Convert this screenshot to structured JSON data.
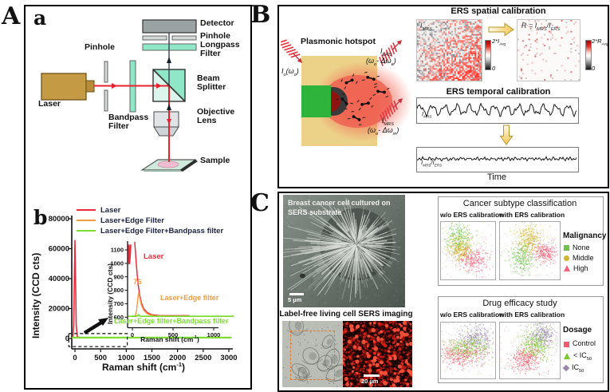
{
  "colors": {
    "laser_red": "#ee2b3d",
    "edge_orange": "#f59b42",
    "bandpass_green": "#7ddd35",
    "legend_text": "#1d2340",
    "calibration_arrow_fill": "#f2c755",
    "hotspot_substrate": "#ecd189",
    "hotspot_waveguide_green": "#2eb43a",
    "sers_map_red": "#ff3020"
  },
  "panelA": {
    "label": "A",
    "diagram": {
      "label": "a",
      "components": {
        "detector": "Detector",
        "pinhole_top": "Pinhole",
        "longpass": "Longpass\nFilter",
        "beamsplitter": "Beam\nSplitter",
        "objective": "Objective\nLens",
        "sample": "Sample",
        "pinhole_left": "Pinhole",
        "laser": "Laser",
        "bandpass": "Bandpass\nFilter"
      }
    },
    "chart": {
      "label": "b"
    }
  },
  "panelB": {
    "label": "B",
    "hotspot": {
      "title": "Plasmonic hotspot",
      "io": {
        "i": "I",
        "isub": "o",
        "open": "(ω",
        "wsub": "o",
        "close": ")"
      },
      "iers": {
        "i": "I",
        "isub": "ERS",
        "open": "(ω",
        "wsub": "o",
        "mid": "- Δω",
        "msub": "e",
        "close": ")"
      },
      "imrs": {
        "i": "I",
        "isub": "MRS",
        "open": "(ω",
        "wsub": "o",
        "mid": "- Δω",
        "msub": "m",
        "close": ")"
      }
    },
    "spatial": {
      "title": "ERS spatial calibration",
      "map_label": {
        "i": "I",
        "sub": "MRS"
      },
      "ratio_label": {
        "pre": "R = I",
        "sub1": "MRS",
        "mid": "/I",
        "sub2": "ERS"
      },
      "cbar_map": {
        "pre": "2*",
        "sym": "I",
        "sub": "Avg",
        "min": "0"
      },
      "cbar_ratio": {
        "pre": "2*",
        "sym": "R",
        "sub": "Avg",
        "min": "0"
      }
    },
    "temporal": {
      "title": "ERS temporal calibration",
      "trace_raw_label": {
        "pre": "I",
        "sub1": "MRS",
        "mid": "",
        "sub2": ""
      },
      "trace_ratio_label": {
        "pre": "I",
        "sub1": "MRS",
        "mid": "/I",
        "sub2": "ERS"
      },
      "xlabel": "Time"
    }
  },
  "panelC": {
    "label": "C",
    "sem_caption": "Breast cancer cell cultured on\nSERS substrate",
    "sem_scalebar": "5 µm",
    "sers_caption": "Label-free living cell SERS imaging",
    "sers_scalebar": "20 µm",
    "classification": {
      "title": "Cancer subtype classification",
      "col1": "w/o ERS calibration",
      "col2": "with ERS calibration",
      "legend_title": "Malignancy",
      "legend": [
        {
          "label": "None",
          "color": "#6cc24a",
          "shape": "square"
        },
        {
          "label": "Middle",
          "color": "#d2b52e",
          "shape": "circle"
        },
        {
          "label": "High",
          "color": "#f2637d",
          "shape": "triangle"
        }
      ]
    },
    "drug": {
      "title": "Drug efficacy study",
      "col1": "w/o ERS calibration",
      "col2": "with ERS calibration",
      "legend_title": "Dosage",
      "legend": [
        {
          "pre": "Control",
          "sub": "",
          "color": "#ef5a6e",
          "shape": "square"
        },
        {
          "pre": "< IC",
          "sub": "50",
          "color": "#7dc832",
          "shape": "triangle"
        },
        {
          "pre": "IC",
          "sub": "50",
          "color": "#9b87ad",
          "shape": "diamond"
        }
      ]
    }
  },
  "chart_data": [
    {
      "id": "spectrum_main",
      "type": "line",
      "xlabel_parts": {
        "pre": "Raman shift (cm",
        "sup": "-1",
        "post": ")"
      },
      "ylabel": "Intensity (CCD cts)",
      "xlim": [
        -120,
        3100
      ],
      "ylim": [
        -7000,
        87000
      ],
      "x_tick_vals": [
        0,
        500,
        1000,
        1500,
        2000,
        2500,
        3000
      ],
      "x_tick_labels": [
        "0",
        "500",
        "1000",
        "1500",
        "2000",
        "2500",
        "3000"
      ],
      "y_tick_vals": [
        0,
        20000,
        40000,
        60000,
        80000
      ],
      "y_tick_labels": [
        "0",
        "20000",
        "40000",
        "60000",
        "80000"
      ],
      "zoom_region": {
        "x0": -120,
        "x1": 1020,
        "y0": -5400,
        "y1": 3300
      },
      "series": [
        {
          "name": "Laser",
          "color": "#ee2b3d",
          "width": 1.6,
          "points": [
            [
              -60,
              650
            ],
            [
              -40,
              900
            ],
            [
              -25,
              9000
            ],
            [
              -12,
              38000
            ],
            [
              0,
              65500
            ],
            [
              12,
              38000
            ],
            [
              25,
              9000
            ],
            [
              45,
              1200
            ],
            [
              90,
              700
            ],
            [
              300,
              640
            ],
            [
              3050,
              630
            ]
          ]
        },
        {
          "name": "Laser+Edge Filter",
          "color": "#f59b42",
          "width": 1.3,
          "points": [
            [
              -60,
              615
            ],
            [
              40,
              620
            ],
            [
              76,
              780
            ],
            [
              150,
              660
            ],
            [
              300,
              618
            ],
            [
              3050,
              612
            ]
          ]
        },
        {
          "name": "Laser+Edge Filter+Bandpass filter",
          "color": "#7ddd35",
          "width": 2.2,
          "points": [
            [
              -60,
              608
            ],
            [
              3050,
              608
            ]
          ]
        }
      ]
    },
    {
      "id": "spectrum_inset",
      "type": "line",
      "xlabel_parts": {
        "pre": "Raman shift (cm",
        "sup": "-1",
        "post": ")"
      },
      "ylabel": "Intensity (CCD cts)",
      "xlim": [
        -60,
        1300
      ],
      "ylim": [
        600,
        1100
      ],
      "x_tick_vals": [
        0,
        500,
        1000
      ],
      "x_tick_labels": [
        "0",
        "500",
        "1000"
      ],
      "y_tick_vals": [
        600,
        700,
        800,
        900,
        1000,
        1100
      ],
      "y_tick_labels": [
        "600",
        "700",
        "800",
        "900",
        "1000",
        "1100"
      ],
      "annotation": {
        "text": "76",
        "x": 76,
        "y": 810
      },
      "laser_left_edge": [
        [
          -52,
          1140
        ],
        [
          -45,
          1035
        ],
        [
          -38,
          1000
        ],
        [
          -30,
          1060
        ],
        [
          -24,
          1140
        ]
      ],
      "series": [
        {
          "name": "Laser",
          "color": "#ee2b3d",
          "width": 1.5,
          "points": [
            [
              28,
              1160
            ],
            [
              38,
              1085
            ],
            [
              48,
              1000
            ],
            [
              58,
              925
            ],
            [
              72,
              840
            ],
            [
              90,
              765
            ],
            [
              112,
              705
            ],
            [
              140,
              662
            ],
            [
              180,
              635
            ],
            [
              240,
              618
            ],
            [
              330,
              612
            ],
            [
              700,
              611
            ]
          ]
        },
        {
          "name": "Laser+Edge filter",
          "color": "#f59b42",
          "width": 1.4,
          "points": [
            [
              -10,
              606
            ],
            [
              35,
              610
            ],
            [
              52,
              648
            ],
            [
              64,
              722
            ],
            [
              76,
              782
            ],
            [
              90,
              746
            ],
            [
              110,
              692
            ],
            [
              140,
              651
            ],
            [
              190,
              622
            ],
            [
              260,
              611
            ],
            [
              420,
              607
            ],
            [
              700,
              607
            ]
          ]
        },
        {
          "name": "Laser+Edge filter+Bandpass filter",
          "color": "#7ddd35",
          "width": 1.8,
          "points": [
            [
              -55,
              607
            ],
            [
              55,
              607
            ],
            [
              70,
              616
            ],
            [
              76,
              619
            ],
            [
              85,
              612
            ],
            [
              100,
              607
            ],
            [
              1280,
              607
            ]
          ]
        }
      ]
    },
    {
      "id": "trace_raw",
      "type": "line",
      "pattern": "oscillatory",
      "seed": 11,
      "components": [
        {
          "period": 15.5,
          "amp": 5.2
        },
        {
          "period": 7.1,
          "amp": 2.4
        },
        {
          "period": 3.3,
          "amp": 1.1
        }
      ],
      "noise": 1.0
    },
    {
      "id": "trace_ratio",
      "type": "line",
      "pattern": "flat_noise",
      "seed": 23,
      "components": [
        {
          "period": 4.3,
          "amp": 1.2
        },
        {
          "period": 9.7,
          "amp": 0.8
        }
      ],
      "noise": 1.6
    },
    {
      "id": "scatter_subtype_wo",
      "type": "scatter",
      "seed": 5,
      "clusters": [
        {
          "name": "None",
          "color": "#6cc24a",
          "cx": 0.33,
          "cy": 0.3,
          "sx": 0.12,
          "sy": 0.13,
          "n": 240
        },
        {
          "name": "Middle",
          "color": "#d2b52e",
          "cx": 0.36,
          "cy": 0.47,
          "sx": 0.12,
          "sy": 0.11,
          "n": 260
        },
        {
          "name": "High",
          "color": "#f2637d",
          "cx": 0.6,
          "cy": 0.66,
          "sx": 0.14,
          "sy": 0.11,
          "n": 260
        }
      ]
    },
    {
      "id": "scatter_subtype_with",
      "type": "scatter",
      "seed": 6,
      "clusters": [
        {
          "name": "None",
          "color": "#6cc24a",
          "cx": 0.37,
          "cy": 0.63,
          "sx": 0.09,
          "sy": 0.13,
          "n": 250
        },
        {
          "name": "Middle",
          "color": "#d2b52e",
          "cx": 0.5,
          "cy": 0.31,
          "sx": 0.1,
          "sy": 0.13,
          "n": 280
        },
        {
          "name": "High",
          "color": "#f2637d",
          "cx": 0.77,
          "cy": 0.54,
          "sx": 0.09,
          "sy": 0.09,
          "n": 240
        }
      ]
    },
    {
      "id": "scatter_drug_wo",
      "type": "scatter",
      "seed": 7,
      "clusters": [
        {
          "name": "IC50",
          "color": "#9b87ad",
          "cx": 0.67,
          "cy": 0.3,
          "sx": 0.16,
          "sy": 0.13,
          "n": 300
        },
        {
          "name": "< IC50",
          "color": "#7dc832",
          "cx": 0.48,
          "cy": 0.47,
          "sx": 0.2,
          "sy": 0.1,
          "n": 300
        },
        {
          "name": "Control",
          "color": "#ef5a6e",
          "cx": 0.38,
          "cy": 0.6,
          "sx": 0.22,
          "sy": 0.1,
          "n": 300
        }
      ]
    },
    {
      "id": "scatter_drug_with",
      "type": "scatter",
      "seed": 8,
      "clusters": [
        {
          "name": "IC50",
          "color": "#9b87ad",
          "cx": 0.73,
          "cy": 0.22,
          "sx": 0.12,
          "sy": 0.11,
          "n": 280
        },
        {
          "name": "< IC50",
          "color": "#7dc832",
          "cx": 0.59,
          "cy": 0.43,
          "sx": 0.13,
          "sy": 0.14,
          "n": 300
        },
        {
          "name": "Control",
          "color": "#ef5a6e",
          "cx": 0.44,
          "cy": 0.68,
          "sx": 0.12,
          "sy": 0.11,
          "n": 280
        }
      ]
    }
  ]
}
